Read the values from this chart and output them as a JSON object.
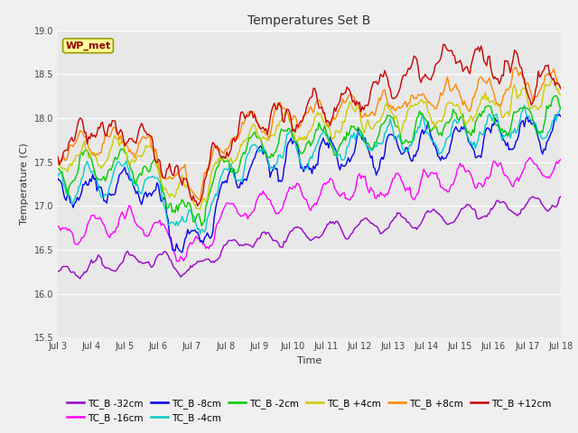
{
  "title": "Temperatures Set B",
  "xlabel": "Time",
  "ylabel": "Temperature (C)",
  "ylim": [
    15.5,
    19.0
  ],
  "xlim": [
    0,
    360
  ],
  "fig_bg_color": "#f0f0f0",
  "plot_bg_color": "#e8e8e8",
  "annotation_text": "WP_met",
  "annotation_bg": "#ffff99",
  "annotation_border": "#999900",
  "xtick_labels": [
    "Jul 3",
    "Jul 4",
    "Jul 5",
    "Jul 6",
    "Jul 7",
    "Jul 8",
    "Jul 9",
    "Jul 10",
    "Jul 11",
    "Jul 12",
    "Jul 13",
    "Jul 14",
    "Jul 15",
    "Jul 16",
    "Jul 17",
    "Jul 18"
  ],
  "xtick_positions": [
    0,
    24,
    48,
    72,
    96,
    120,
    144,
    168,
    192,
    216,
    240,
    264,
    288,
    312,
    336,
    360
  ],
  "series": [
    {
      "label": "TC_B -32cm",
      "color": "#9900cc"
    },
    {
      "label": "TC_B -16cm",
      "color": "#ff00ff"
    },
    {
      "label": "TC_B -8cm",
      "color": "#0000ee"
    },
    {
      "label": "TC_B -4cm",
      "color": "#00cccc"
    },
    {
      "label": "TC_B -2cm",
      "color": "#00cc00"
    },
    {
      "label": "TC_B +4cm",
      "color": "#cccc00"
    },
    {
      "label": "TC_B +8cm",
      "color": "#ff8800"
    },
    {
      "label": "TC_B +12cm",
      "color": "#cc0000"
    }
  ],
  "linewidth": 1.0,
  "ytick_labels": [
    "15.5",
    "16.0",
    "16.5",
    "17.0",
    "17.5",
    "18.0",
    "18.5",
    "19.0"
  ],
  "ytick_positions": [
    15.5,
    16.0,
    16.5,
    17.0,
    17.5,
    18.0,
    18.5,
    19.0
  ]
}
